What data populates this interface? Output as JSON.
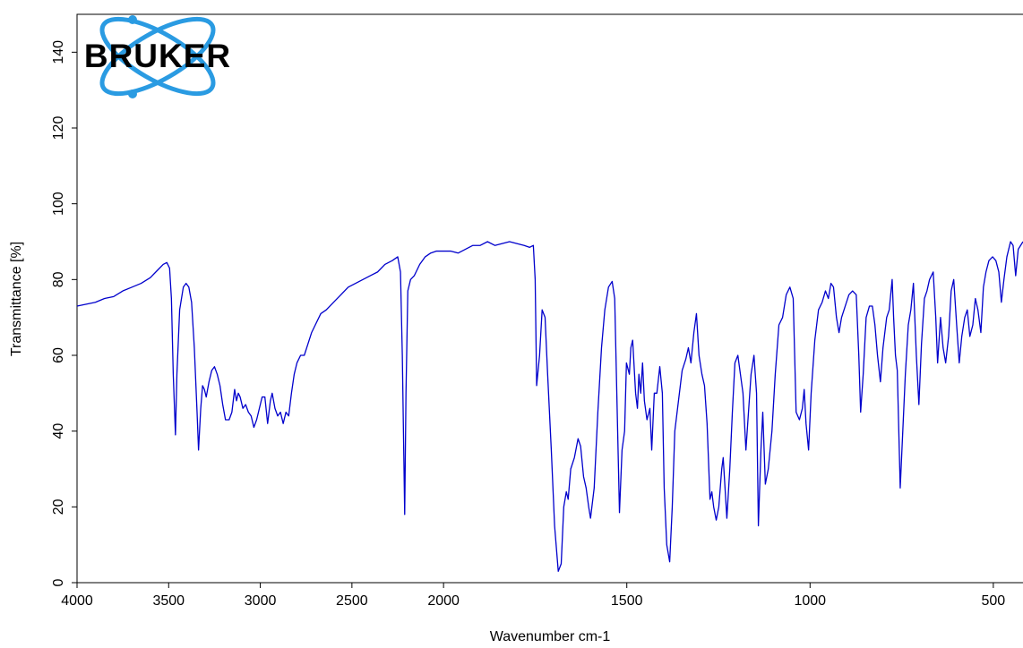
{
  "chart_data": {
    "type": "line",
    "logo": "BRUKER",
    "x_label": "Wavenumber cm-1",
    "y_label": "Transmittance [%]",
    "color": "#0000cc",
    "xlim": [
      4000,
      419
    ],
    "x_axis_break": 2000,
    "x_axis_expansion": 2,
    "ylim": [
      0,
      150
    ],
    "xticks": [
      4000,
      3500,
      3000,
      2500,
      2000,
      1500,
      1000,
      500
    ],
    "yticks": [
      0,
      20,
      40,
      60,
      80,
      100,
      120,
      140
    ],
    "x": [
      4000,
      3950,
      3900,
      3850,
      3800,
      3750,
      3700,
      3650,
      3600,
      3560,
      3530,
      3510,
      3495,
      3485,
      3475,
      3463,
      3455,
      3440,
      3420,
      3405,
      3390,
      3375,
      3360,
      3345,
      3337,
      3325,
      3315,
      3305,
      3295,
      3280,
      3265,
      3250,
      3235,
      3220,
      3205,
      3190,
      3170,
      3155,
      3140,
      3130,
      3120,
      3110,
      3095,
      3080,
      3065,
      3050,
      3035,
      3020,
      3005,
      2990,
      2975,
      2960,
      2945,
      2935,
      2920,
      2905,
      2890,
      2875,
      2860,
      2845,
      2830,
      2815,
      2800,
      2780,
      2760,
      2740,
      2720,
      2700,
      2670,
      2640,
      2600,
      2560,
      2520,
      2480,
      2440,
      2400,
      2360,
      2320,
      2280,
      2250,
      2235,
      2225,
      2212,
      2205,
      2195,
      2180,
      2160,
      2130,
      2100,
      2070,
      2040,
      2000,
      1980,
      1960,
      1940,
      1920,
      1900,
      1880,
      1860,
      1840,
      1820,
      1800,
      1780,
      1765,
      1755,
      1750,
      1746,
      1738,
      1731,
      1723,
      1716,
      1706,
      1697,
      1687,
      1679,
      1672,
      1665,
      1660,
      1653,
      1643,
      1633,
      1626,
      1618,
      1611,
      1604,
      1599,
      1589,
      1579,
      1569,
      1560,
      1550,
      1540,
      1533,
      1525,
      1520,
      1513,
      1506,
      1501,
      1493,
      1489,
      1484,
      1476,
      1471,
      1467,
      1462,
      1457,
      1452,
      1445,
      1437,
      1432,
      1425,
      1418,
      1410,
      1403,
      1398,
      1391,
      1383,
      1376,
      1369,
      1359,
      1349,
      1339,
      1332,
      1325,
      1317,
      1310,
      1303,
      1295,
      1288,
      1281,
      1273,
      1268,
      1263,
      1256,
      1249,
      1241,
      1237,
      1232,
      1227,
      1219,
      1212,
      1205,
      1197,
      1190,
      1183,
      1175,
      1168,
      1161,
      1153,
      1146,
      1141,
      1134,
      1129,
      1122,
      1114,
      1104,
      1095,
      1085,
      1075,
      1065,
      1055,
      1046,
      1038,
      1029,
      1021,
      1016,
      1011,
      1004,
      997,
      987,
      977,
      967,
      958,
      950,
      943,
      936,
      928,
      921,
      914,
      904,
      894,
      884,
      874,
      867,
      862,
      855,
      847,
      838,
      830,
      823,
      816,
      808,
      801,
      791,
      784,
      776,
      772,
      767,
      762,
      754,
      747,
      740,
      732,
      725,
      718,
      710,
      703,
      696,
      688,
      681,
      674,
      664,
      657,
      652,
      644,
      637,
      630,
      622,
      615,
      608,
      600,
      593,
      586,
      578,
      571,
      564,
      556,
      549,
      542,
      534,
      527,
      520,
      512,
      502,
      493,
      485,
      478,
      471,
      463,
      453,
      446,
      439,
      432,
      419
    ],
    "values": [
      73,
      73.5,
      74,
      75,
      75.5,
      77,
      78,
      79,
      80.5,
      82.5,
      84,
      84.5,
      83,
      75,
      55,
      39,
      55,
      72,
      78,
      79,
      78,
      74,
      62,
      45,
      35,
      46,
      52,
      51,
      49,
      53,
      56,
      57,
      55,
      52,
      47,
      43,
      43,
      45,
      51,
      48,
      50,
      49,
      46,
      47,
      45,
      44,
      41,
      43,
      46,
      49,
      49,
      42,
      48,
      50,
      46,
      44,
      45,
      42,
      45,
      44,
      50,
      55,
      58,
      60,
      60,
      63,
      66,
      68,
      71,
      72,
      74,
      76,
      78,
      79,
      80,
      81,
      82,
      84,
      85,
      86,
      82,
      60,
      18,
      50,
      77,
      80,
      81,
      84,
      86,
      87,
      87.5,
      87.5,
      87.5,
      87,
      88,
      89,
      89,
      90,
      89,
      89.5,
      90,
      89.5,
      89,
      88.5,
      89,
      80,
      52,
      60,
      72,
      70,
      55,
      35,
      15,
      3,
      5,
      20,
      24,
      22,
      30,
      33,
      38,
      36,
      28,
      25,
      20,
      17,
      25,
      45,
      62,
      72,
      78,
      79.5,
      75,
      40,
      18.5,
      35,
      40,
      58,
      55,
      62,
      64,
      50,
      46,
      55,
      50,
      58,
      48,
      43,
      46,
      35,
      50,
      50,
      57,
      50,
      25,
      10,
      5.5,
      20,
      40,
      48,
      56,
      59,
      62,
      58,
      66,
      71,
      60,
      55,
      52,
      42,
      22,
      24,
      20,
      16.5,
      20,
      30,
      33,
      25,
      17,
      30,
      45,
      58,
      60,
      55,
      50,
      35,
      45,
      55,
      60,
      50,
      15,
      35,
      45,
      26,
      30,
      40,
      55,
      68,
      70,
      76,
      78,
      75,
      45,
      43,
      46,
      51,
      42,
      35,
      50,
      64,
      72,
      74,
      77,
      75,
      79,
      78,
      70,
      66,
      70,
      73,
      76,
      77,
      76,
      60,
      45,
      55,
      70,
      73,
      73,
      68,
      60,
      53,
      62,
      70,
      72,
      80,
      70,
      60,
      56,
      25,
      40,
      55,
      68,
      72,
      79,
      60,
      47,
      63,
      75,
      77,
      80,
      82,
      70,
      58,
      70,
      62,
      58,
      65,
      77,
      80,
      68,
      58,
      65,
      70,
      72,
      65,
      68,
      75,
      72,
      66,
      78,
      82,
      85,
      86,
      85,
      82,
      74,
      80,
      86,
      90,
      89,
      81,
      88,
      90
    ]
  }
}
